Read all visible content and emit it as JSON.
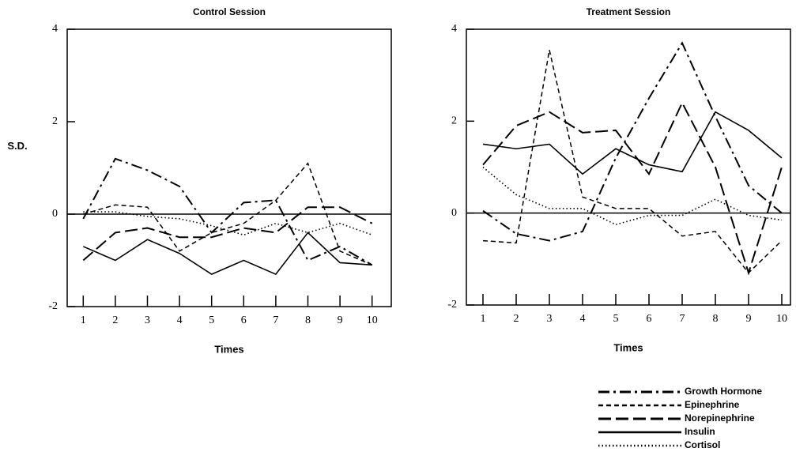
{
  "chart_data": [
    {
      "type": "line",
      "title": "Control Session",
      "y_label": "S.D.",
      "x_label": "Times",
      "categories": [
        "1",
        "2",
        "3",
        "4",
        "5",
        "6",
        "7",
        "8",
        "9",
        "10"
      ],
      "ylim": [
        -2,
        4
      ],
      "yticks": [
        -2,
        0,
        2,
        4
      ],
      "zero_line": true,
      "series": [
        {
          "name": "Growth Hormone",
          "color": "#000",
          "dash": "14 5 3 5",
          "width": 2,
          "values": [
            -0.1,
            1.2,
            0.95,
            0.6,
            -0.4,
            0.25,
            0.3,
            -1.0,
            -0.7,
            -1.1
          ]
        },
        {
          "name": "Epinephrine",
          "color": "#000",
          "dash": "6 4",
          "width": 1.5,
          "values": [
            0.0,
            0.2,
            0.15,
            -0.8,
            -0.4,
            -0.2,
            0.3,
            1.1,
            -0.8,
            -1.1
          ]
        },
        {
          "name": "Norepinephrine",
          "color": "#000",
          "dash": "16 6",
          "width": 2,
          "values": [
            -1.0,
            -0.4,
            -0.3,
            -0.5,
            -0.5,
            -0.3,
            -0.4,
            0.15,
            0.15,
            -0.2
          ]
        },
        {
          "name": "Insulin",
          "color": "#000",
          "dash": "none",
          "width": 1.6,
          "values": [
            -0.7,
            -1.0,
            -0.55,
            -0.85,
            -1.3,
            -1.0,
            -1.3,
            -0.4,
            -1.05,
            -1.1
          ]
        },
        {
          "name": "Cortisol",
          "color": "#000",
          "dash": "1.5 3",
          "width": 1.6,
          "values": [
            0.05,
            0.05,
            -0.05,
            -0.1,
            -0.25,
            -0.45,
            -0.2,
            -0.4,
            -0.2,
            -0.45
          ]
        }
      ]
    },
    {
      "type": "line",
      "title": "Treatment Session",
      "x_label": "Times",
      "categories": [
        "1",
        "2",
        "3",
        "4",
        "5",
        "6",
        "7",
        "8",
        "9",
        "10"
      ],
      "ylim": [
        -2,
        4
      ],
      "yticks": [
        -2,
        0,
        2,
        4
      ],
      "zero_line": true,
      "series": [
        {
          "name": "Growth Hormone",
          "color": "#000",
          "dash": "14 5 3 5",
          "width": 2,
          "values": [
            0.05,
            -0.45,
            -0.6,
            -0.4,
            1.2,
            2.5,
            3.7,
            2.1,
            0.6,
            0.0
          ]
        },
        {
          "name": "Epinephrine",
          "color": "#000",
          "dash": "6 4",
          "width": 1.5,
          "values": [
            -0.6,
            -0.65,
            3.55,
            0.35,
            0.1,
            0.1,
            -0.5,
            -0.4,
            -1.3,
            -0.6
          ]
        },
        {
          "name": "Norepinephrine",
          "color": "#000",
          "dash": "16 6",
          "width": 2,
          "values": [
            1.05,
            1.9,
            2.2,
            1.75,
            1.8,
            0.85,
            2.4,
            1.0,
            -1.3,
            1.0
          ]
        },
        {
          "name": "Insulin",
          "color": "#000",
          "dash": "none",
          "width": 1.6,
          "values": [
            1.5,
            1.4,
            1.5,
            0.85,
            1.4,
            1.05,
            0.9,
            2.2,
            1.8,
            1.2
          ]
        },
        {
          "name": "Cortisol",
          "color": "#000",
          "dash": "1.5 3",
          "width": 1.6,
          "values": [
            1.0,
            0.4,
            0.1,
            0.1,
            -0.25,
            -0.05,
            -0.05,
            0.3,
            -0.05,
            -0.15
          ]
        }
      ]
    }
  ]
}
